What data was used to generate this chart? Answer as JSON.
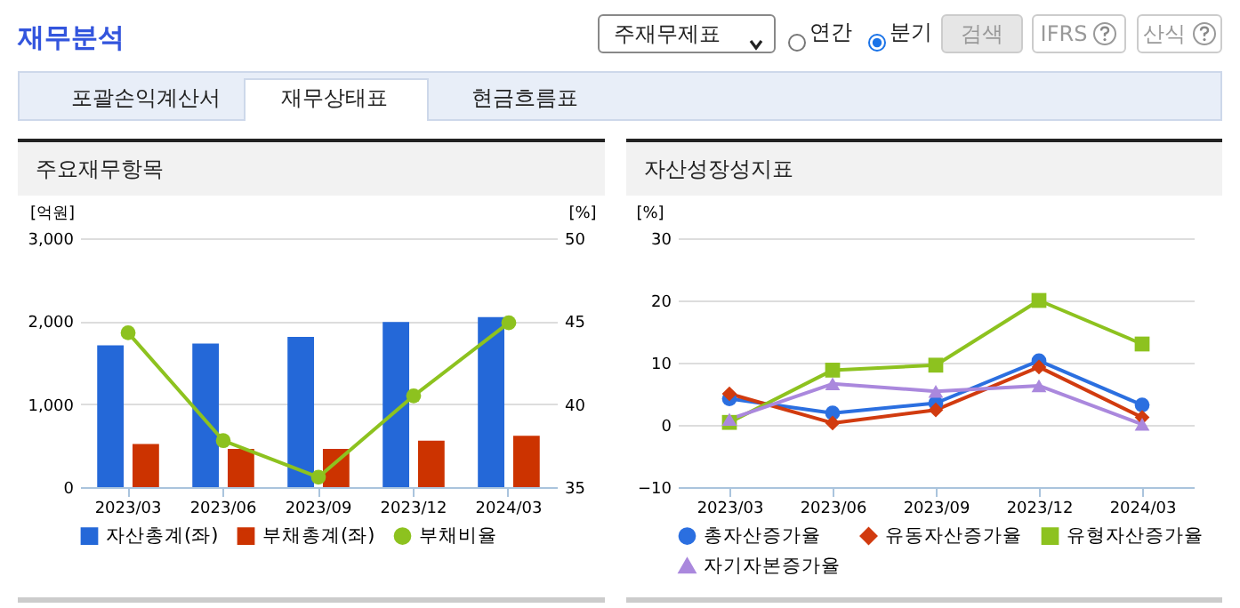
{
  "chart_data": [
    {
      "type": "other",
      "title": "재무분석",
      "annotations": [
        "주재무제표",
        "연간",
        "분기",
        "검색",
        "IFRS",
        "산식",
        "포괄손익계산서",
        "재무상태표",
        "현금흐름표"
      ]
    },
    {
      "type": "bar",
      "title": "주요재무항목",
      "categories": [
        "2023/03",
        "2023/06",
        "2023/09",
        "2023/12",
        "2024/03"
      ],
      "ylabel": "[억원]",
      "y2label": "[%]",
      "ylim": [
        0,
        3000
      ],
      "yticks": [
        0,
        {
          "value": 1000,
          "label": "1,000"
        },
        {
          "value": 2000,
          "label": "2,000"
        },
        {
          "value": 3000,
          "label": "3,000"
        }
      ],
      "y2lim": [
        35,
        50
      ],
      "y2ticks": [
        35,
        40,
        45,
        50
      ],
      "grid": "y",
      "legend": "bottom",
      "marker": "circle",
      "series": [
        {
          "name": "자산총계(좌)",
          "color": "#2468d8",
          "values": [
            1710,
            1730,
            1810,
            1990,
            2050
          ]
        },
        {
          "name": "부채총계(좌)",
          "color": "#cc3300",
          "values": [
            520,
            460,
            460,
            560,
            620
          ]
        },
        {
          "name": "부채비율",
          "type": "line",
          "axis": "y2",
          "color": "#8dc21f",
          "values": [
            44.3,
            37.8,
            35.6,
            40.5,
            44.9
          ]
        }
      ]
    },
    {
      "type": "line",
      "title": "자산성장성지표",
      "categories": [
        "2023/03",
        "2023/06",
        "2023/09",
        "2023/12",
        "2024/03"
      ],
      "ylabel": "[%]",
      "ylim": [
        -10,
        30
      ],
      "yticks": [
        -10,
        0,
        10,
        20,
        30
      ],
      "grid": "y",
      "legend": "bottom",
      "series": [
        {
          "name": "총자산증가율",
          "color": "#2b6fe0",
          "marker": "circle",
          "values": [
            4.2,
            1.9,
            3.5,
            10.3,
            3.2
          ]
        },
        {
          "name": "유동자산증가율",
          "color": "#d13b0f",
          "marker": "diamond",
          "values": [
            5.0,
            0.3,
            2.4,
            9.3,
            1.2
          ]
        },
        {
          "name": "유형자산증가율",
          "color": "#8dc21f",
          "marker": "square",
          "values": [
            0.4,
            8.8,
            9.6,
            20.0,
            13.0
          ]
        },
        {
          "name": "자기자본증가율",
          "color": "#aa88dd",
          "marker": "triangle",
          "values": [
            0.9,
            6.6,
            5.4,
            6.3,
            0.1
          ]
        }
      ]
    }
  ]
}
